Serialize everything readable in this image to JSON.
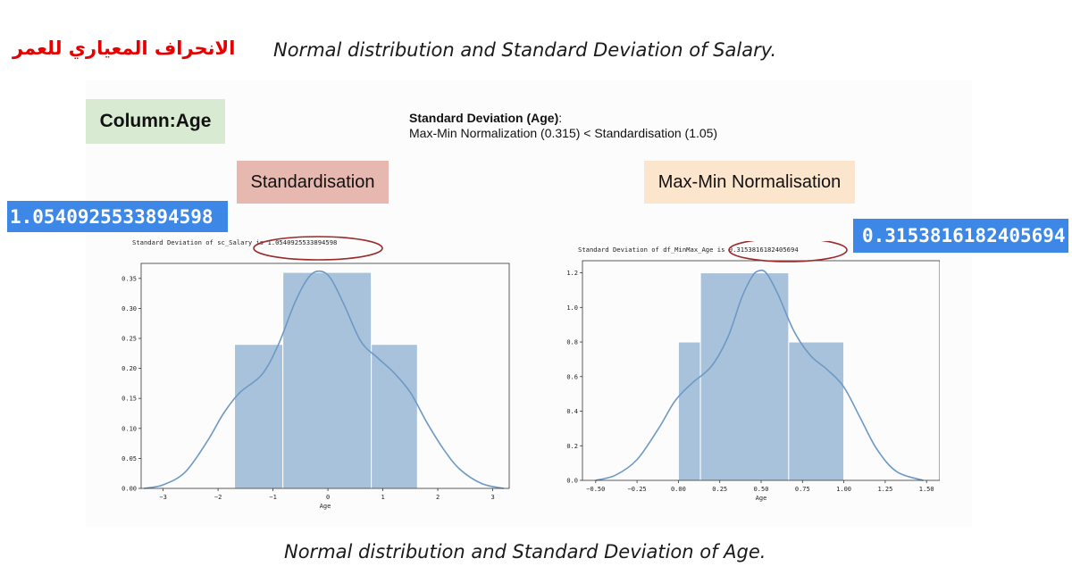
{
  "slide": {
    "arabic_title": "الانحراف المعياري للعمر",
    "top_caption": "Normal distribution and Standard Deviation of Salary.",
    "bottom_caption": "Normal distribution and Standard Deviation of Age.",
    "column_badge": "Column:Age",
    "note_heading": "Standard Deviation (Age)",
    "note_colon": ":",
    "note_body": "Max-Min Normalization (0.315) < Standardisation (1.05)",
    "std_label": "Standardisation",
    "minmax_label": "Max-Min Normalisation",
    "std_value": "1.0540925533894598",
    "minmax_value": "0.3153816182405694",
    "colors": {
      "arabic_title": "#e60000",
      "column_badge_bg": "#d9ead3",
      "std_badge_bg": "#e6b8af",
      "minmax_badge_bg": "#fce5cd",
      "value_box_bg": "#3d87e6",
      "bar_fill": "#a9c2dc",
      "kde_line": "#6d99c4",
      "highlight_ellipse": "#9b2a2a"
    }
  },
  "chart_data": [
    {
      "type": "bar",
      "title": "Standard Deviation of sc_Salary is 1.0540925533894598",
      "xlabel": "Age",
      "ylabel": "",
      "xlim": [
        -3.4,
        3.3
      ],
      "ylim": [
        0,
        0.375
      ],
      "xticks": [
        -3,
        -2,
        -1,
        0,
        1,
        2,
        3
      ],
      "xtick_labels": [
        "−3",
        "−2",
        "−1",
        "0",
        "1",
        "2",
        "3"
      ],
      "yticks": [
        0,
        0.05,
        0.1,
        0.15,
        0.2,
        0.25,
        0.3,
        0.35
      ],
      "ytick_labels": [
        "0.00",
        "0.05",
        "0.10",
        "0.15",
        "0.20",
        "0.25",
        "0.30",
        "0.35"
      ],
      "bins": [
        {
          "x0": -1.7,
          "x1": -0.82,
          "value": 0.24
        },
        {
          "x0": -0.82,
          "x1": 0.79,
          "value": 0.36
        },
        {
          "x0": 0.79,
          "x1": 1.63,
          "value": 0.24
        }
      ],
      "kde": {
        "x": [
          -3.35,
          -3.0,
          -2.6,
          -2.2,
          -1.9,
          -1.6,
          -1.2,
          -0.9,
          -0.6,
          -0.35,
          -0.15,
          0.05,
          0.3,
          0.6,
          0.9,
          1.2,
          1.5,
          1.8,
          2.1,
          2.4,
          2.8,
          3.2
        ],
        "y": [
          0.0,
          0.006,
          0.027,
          0.078,
          0.125,
          0.16,
          0.19,
          0.24,
          0.31,
          0.352,
          0.362,
          0.35,
          0.305,
          0.245,
          0.218,
          0.193,
          0.16,
          0.11,
          0.066,
          0.032,
          0.008,
          0.0
        ]
      },
      "grid": false
    },
    {
      "type": "bar",
      "title": "Standard Deviation of df_MinMax_Age is 0.3153816182405694",
      "xlabel": "Age",
      "ylabel": "",
      "xlim": [
        -0.58,
        1.58
      ],
      "ylim": [
        0,
        1.27
      ],
      "xticks": [
        -0.5,
        -0.25,
        0,
        0.25,
        0.5,
        0.75,
        1.0,
        1.25,
        1.5
      ],
      "xtick_labels": [
        "−0.50",
        "−0.25",
        "0.00",
        "0.25",
        "0.50",
        "0.75",
        "1.00",
        "1.25",
        "1.50"
      ],
      "yticks": [
        0,
        0.2,
        0.4,
        0.6,
        0.8,
        1.0,
        1.2
      ],
      "ytick_labels": [
        "0.0",
        "0.2",
        "0.4",
        "0.6",
        "0.8",
        "1.0",
        "1.2"
      ],
      "bins": [
        {
          "x0": 0.0,
          "x1": 0.1333,
          "value": 0.8
        },
        {
          "x0": 0.1333,
          "x1": 0.6667,
          "value": 1.2
        },
        {
          "x0": 0.6667,
          "x1": 1.0,
          "value": 0.8
        }
      ],
      "kde": {
        "x": [
          -0.5,
          -0.38,
          -0.25,
          -0.12,
          -0.02,
          0.08,
          0.2,
          0.3,
          0.38,
          0.44,
          0.48,
          0.53,
          0.6,
          0.7,
          0.8,
          0.9,
          1.0,
          1.1,
          1.2,
          1.32,
          1.48
        ],
        "y": [
          0.0,
          0.03,
          0.12,
          0.3,
          0.46,
          0.56,
          0.66,
          0.83,
          1.05,
          1.17,
          1.21,
          1.2,
          1.08,
          0.86,
          0.72,
          0.64,
          0.54,
          0.36,
          0.18,
          0.05,
          0.0
        ]
      },
      "grid": false
    }
  ]
}
